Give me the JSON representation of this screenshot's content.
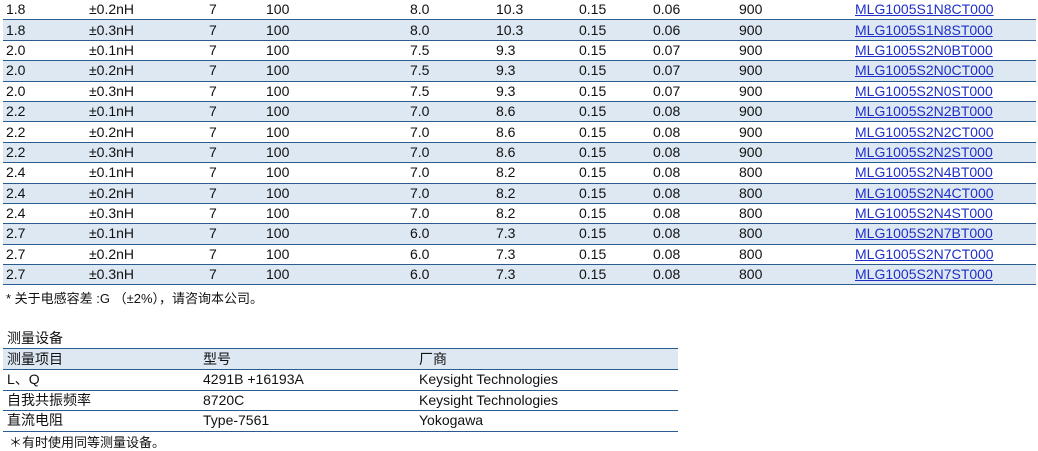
{
  "spec_rows": [
    [
      "1.8",
      "±0.2nH",
      "7",
      "100",
      "8.0",
      "10.3",
      "0.15",
      "0.06",
      "900",
      "MLG1005S1N8CT000"
    ],
    [
      "1.8",
      "±0.3nH",
      "7",
      "100",
      "8.0",
      "10.3",
      "0.15",
      "0.06",
      "900",
      "MLG1005S1N8ST000"
    ],
    [
      "2.0",
      "±0.1nH",
      "7",
      "100",
      "7.5",
      "9.3",
      "0.15",
      "0.07",
      "900",
      "MLG1005S2N0BT000"
    ],
    [
      "2.0",
      "±0.2nH",
      "7",
      "100",
      "7.5",
      "9.3",
      "0.15",
      "0.07",
      "900",
      "MLG1005S2N0CT000"
    ],
    [
      "2.0",
      "±0.3nH",
      "7",
      "100",
      "7.5",
      "9.3",
      "0.15",
      "0.07",
      "900",
      "MLG1005S2N0ST000"
    ],
    [
      "2.2",
      "±0.1nH",
      "7",
      "100",
      "7.0",
      "8.6",
      "0.15",
      "0.08",
      "900",
      "MLG1005S2N2BT000"
    ],
    [
      "2.2",
      "±0.2nH",
      "7",
      "100",
      "7.0",
      "8.6",
      "0.15",
      "0.08",
      "900",
      "MLG1005S2N2CT000"
    ],
    [
      "2.2",
      "±0.3nH",
      "7",
      "100",
      "7.0",
      "8.6",
      "0.15",
      "0.08",
      "900",
      "MLG1005S2N2ST000"
    ],
    [
      "2.4",
      "±0.1nH",
      "7",
      "100",
      "7.0",
      "8.2",
      "0.15",
      "0.08",
      "800",
      "MLG1005S2N4BT000"
    ],
    [
      "2.4",
      "±0.2nH",
      "7",
      "100",
      "7.0",
      "8.2",
      "0.15",
      "0.08",
      "800",
      "MLG1005S2N4CT000"
    ],
    [
      "2.4",
      "±0.3nH",
      "7",
      "100",
      "7.0",
      "8.2",
      "0.15",
      "0.08",
      "800",
      "MLG1005S2N4ST000"
    ],
    [
      "2.7",
      "±0.1nH",
      "7",
      "100",
      "6.0",
      "7.3",
      "0.15",
      "0.08",
      "800",
      "MLG1005S2N7BT000"
    ],
    [
      "2.7",
      "±0.2nH",
      "7",
      "100",
      "6.0",
      "7.3",
      "0.15",
      "0.08",
      "800",
      "MLG1005S2N7CT000"
    ],
    [
      "2.7",
      "±0.3nH",
      "7",
      "100",
      "6.0",
      "7.3",
      "0.15",
      "0.08",
      "800",
      "MLG1005S2N7ST000"
    ]
  ],
  "spec_note": "* 关于电感容差 :G （±2%），请咨询本公司。",
  "equipment": {
    "title": "测量设备",
    "headers": [
      "测量项目",
      "型号",
      "厂商"
    ],
    "rows": [
      [
        "L、Q",
        "4291B +16193A",
        "Keysight Technologies"
      ],
      [
        "自我共振频率",
        "8720C",
        "Keysight Technologies"
      ],
      [
        "直流电阻",
        "Type-7561",
        "Yokogawa"
      ]
    ],
    "note": "＊有时使用同等测量设备。"
  },
  "colors": {
    "row_stripe": "#dde8f3",
    "rule": "#2b5c8f",
    "link": "#1f2fc8"
  }
}
